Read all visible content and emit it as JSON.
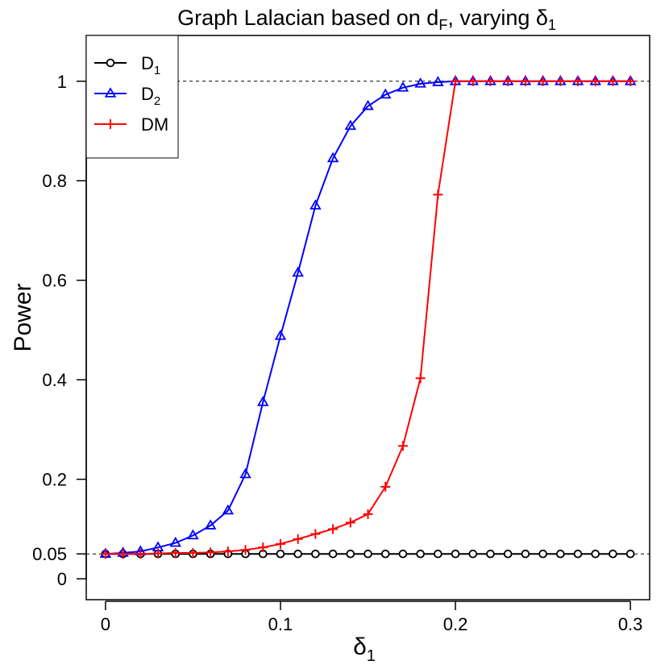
{
  "chart_data": {
    "type": "line",
    "title": {
      "main": "Graph Lalacian based on d",
      "main_sub": "F",
      "mid": ", varying δ",
      "end_sub": "1"
    },
    "xlabel": {
      "base": "δ",
      "sub": "1"
    },
    "ylabel": "Power",
    "xlim": [
      -0.011,
      0.311
    ],
    "ylim": [
      -0.042,
      1.092
    ],
    "x_ticks": [
      0,
      0.1,
      0.2,
      0.3
    ],
    "x_tick_labels": [
      "0",
      "0.1",
      "0.2",
      "0.3"
    ],
    "y_ticks": [
      0,
      0.05,
      0.2,
      0.4,
      0.6,
      0.8,
      1
    ],
    "y_tick_labels": [
      "0",
      "0.05",
      "0.2",
      "0.4",
      "0.6",
      "0.8",
      "1"
    ],
    "reference_lines": [
      0.05,
      1
    ],
    "x": [
      0,
      0.01,
      0.02,
      0.03,
      0.04,
      0.05,
      0.06,
      0.07,
      0.08,
      0.09,
      0.1,
      0.11,
      0.12,
      0.13,
      0.14,
      0.15,
      0.16,
      0.17,
      0.18,
      0.19,
      0.2,
      0.21,
      0.22,
      0.23,
      0.24,
      0.25,
      0.26,
      0.27,
      0.28,
      0.29,
      0.3
    ],
    "series": [
      {
        "name": "D1",
        "label": "D",
        "label_sub": "1",
        "color": "#000000",
        "marker": "circle",
        "values": [
          0.05,
          0.05,
          0.05,
          0.05,
          0.05,
          0.05,
          0.05,
          0.05,
          0.05,
          0.05,
          0.05,
          0.05,
          0.05,
          0.05,
          0.05,
          0.05,
          0.05,
          0.05,
          0.05,
          0.05,
          0.05,
          0.05,
          0.05,
          0.05,
          0.05,
          0.05,
          0.05,
          0.05,
          0.05,
          0.05,
          0.05
        ]
      },
      {
        "name": "D2",
        "label": "D",
        "label_sub": "2",
        "color": "#0000ff",
        "marker": "triangle",
        "values": [
          0.05,
          0.052,
          0.055,
          0.063,
          0.072,
          0.087,
          0.107,
          0.137,
          0.21,
          0.355,
          0.488,
          0.615,
          0.75,
          0.845,
          0.91,
          0.95,
          0.973,
          0.987,
          0.995,
          0.998,
          1,
          1,
          1,
          1,
          1,
          1,
          1,
          1,
          1,
          1,
          1
        ]
      },
      {
        "name": "DM",
        "label": "DM",
        "label_sub": "",
        "color": "#ff0000",
        "marker": "plus",
        "values": [
          0.05,
          0.05,
          0.05,
          0.051,
          0.052,
          0.052,
          0.053,
          0.055,
          0.058,
          0.063,
          0.07,
          0.08,
          0.09,
          0.1,
          0.113,
          0.13,
          0.185,
          0.267,
          0.403,
          0.772,
          1,
          1,
          1,
          1,
          1,
          1,
          1,
          1,
          1,
          1,
          1
        ]
      }
    ],
    "legend_position": "top-left"
  }
}
